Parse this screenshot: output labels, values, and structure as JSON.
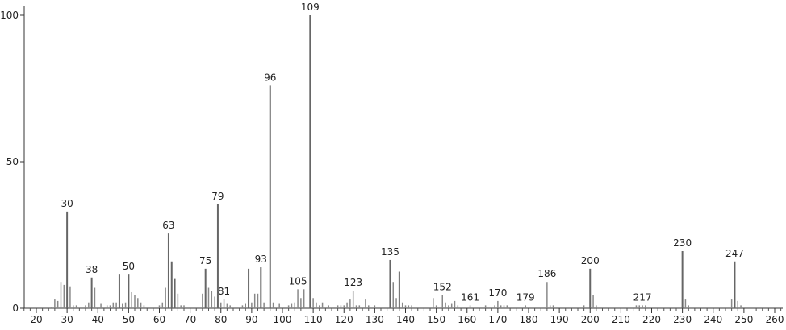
{
  "chart_data": {
    "type": "bar",
    "title": "",
    "xlabel": "",
    "ylabel": "",
    "xlim": [
      15,
      265
    ],
    "ylim": [
      0,
      100
    ],
    "x_ticks": [
      20,
      30,
      40,
      50,
      60,
      70,
      80,
      90,
      100,
      110,
      120,
      130,
      140,
      150,
      160,
      170,
      180,
      190,
      200,
      210,
      220,
      230,
      240,
      250,
      260
    ],
    "y_ticks": [
      0,
      50,
      100
    ],
    "grid": false,
    "bar_color": "#888888",
    "peaks": [
      [
        25,
        0.5
      ],
      [
        26,
        3
      ],
      [
        27,
        2.5
      ],
      [
        28,
        9
      ],
      [
        29,
        8
      ],
      [
        30,
        33
      ],
      [
        31,
        7.5
      ],
      [
        32,
        1
      ],
      [
        33,
        1
      ],
      [
        36,
        1
      ],
      [
        37,
        2
      ],
      [
        38,
        10.5
      ],
      [
        39,
        7
      ],
      [
        41,
        1.5
      ],
      [
        43,
        1
      ],
      [
        44,
        1
      ],
      [
        45,
        2
      ],
      [
        46,
        2
      ],
      [
        47,
        11.5
      ],
      [
        48,
        1.5
      ],
      [
        49,
        2
      ],
      [
        50,
        11.5
      ],
      [
        51,
        5.5
      ],
      [
        52,
        4.5
      ],
      [
        53,
        3.5
      ],
      [
        54,
        2
      ],
      [
        55,
        1
      ],
      [
        60,
        1
      ],
      [
        61,
        2
      ],
      [
        62,
        7
      ],
      [
        63,
        25.5
      ],
      [
        64,
        16
      ],
      [
        65,
        10
      ],
      [
        66,
        5
      ],
      [
        67,
        1
      ],
      [
        68,
        1
      ],
      [
        74,
        5
      ],
      [
        75,
        13.5
      ],
      [
        76,
        7
      ],
      [
        77,
        6
      ],
      [
        78,
        4
      ],
      [
        79,
        35.5
      ],
      [
        80,
        2
      ],
      [
        81,
        3
      ],
      [
        82,
        1.5
      ],
      [
        83,
        1
      ],
      [
        87,
        1
      ],
      [
        88,
        1.5
      ],
      [
        89,
        13.5
      ],
      [
        90,
        2
      ],
      [
        91,
        5
      ],
      [
        92,
        5
      ],
      [
        93,
        14
      ],
      [
        94,
        2
      ],
      [
        96,
        76
      ],
      [
        97,
        2
      ],
      [
        99,
        1.5
      ],
      [
        102,
        1
      ],
      [
        103,
        1.5
      ],
      [
        104,
        2
      ],
      [
        105,
        6.5
      ],
      [
        106,
        3.5
      ],
      [
        107,
        6.5
      ],
      [
        109,
        100
      ],
      [
        110,
        3.5
      ],
      [
        111,
        2
      ],
      [
        112,
        1
      ],
      [
        113,
        2
      ],
      [
        115,
        1
      ],
      [
        118,
        1
      ],
      [
        119,
        1
      ],
      [
        120,
        1
      ],
      [
        121,
        2
      ],
      [
        122,
        3
      ],
      [
        123,
        6
      ],
      [
        124,
        1
      ],
      [
        125,
        1
      ],
      [
        127,
        3
      ],
      [
        128,
        1
      ],
      [
        130,
        1
      ],
      [
        135,
        16.5
      ],
      [
        136,
        9
      ],
      [
        137,
        3.5
      ],
      [
        138,
        12.5
      ],
      [
        139,
        2
      ],
      [
        140,
        1
      ],
      [
        141,
        1
      ],
      [
        142,
        1
      ],
      [
        149,
        3.5
      ],
      [
        150,
        1
      ],
      [
        152,
        4.5
      ],
      [
        153,
        2
      ],
      [
        154,
        1
      ],
      [
        155,
        1.5
      ],
      [
        156,
        2.5
      ],
      [
        157,
        1
      ],
      [
        161,
        1
      ],
      [
        166,
        1
      ],
      [
        169,
        1
      ],
      [
        170,
        2.5
      ],
      [
        171,
        1
      ],
      [
        172,
        1
      ],
      [
        173,
        1
      ],
      [
        179,
        1
      ],
      [
        186,
        9
      ],
      [
        187,
        1
      ],
      [
        188,
        1
      ],
      [
        198,
        1
      ],
      [
        200,
        13.5
      ],
      [
        201,
        4.5
      ],
      [
        202,
        1
      ],
      [
        215,
        1
      ],
      [
        216,
        1
      ],
      [
        217,
        1
      ],
      [
        218,
        1
      ],
      [
        230,
        19.5
      ],
      [
        231,
        3
      ],
      [
        232,
        1
      ],
      [
        246,
        3
      ],
      [
        247,
        16
      ],
      [
        248,
        2.5
      ],
      [
        249,
        1
      ]
    ],
    "peak_labels": [
      "30",
      "38",
      "50",
      "63",
      "75",
      "79",
      "81",
      "93",
      "96",
      "105",
      "109",
      "123",
      "135",
      "152",
      "161",
      "170",
      "179",
      "186",
      "200",
      "217",
      "230",
      "247"
    ]
  }
}
